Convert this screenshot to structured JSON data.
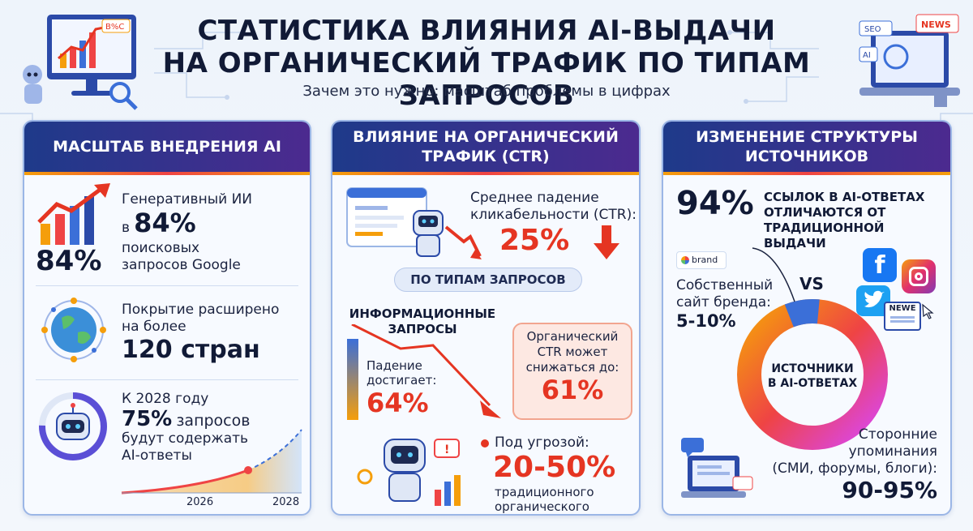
{
  "header": {
    "title_line1": "СТАТИСТИКА ВЛИЯНИЯ AI-ВЫДАЧИ",
    "title_line2": "НА ОРГАНИЧЕСКИЙ ТРАФИК ПО ТИПАМ ЗАПРОСОВ",
    "subtitle": "Зачем это нужно: масштаб проблемы в цифрах",
    "sign_left": "B%C",
    "sign_news": "NEWS",
    "sign_seo": "SEO",
    "sign_ai": "AI"
  },
  "panel1": {
    "heading": "МАСШТАБ ВНЕДРЕНИЯ AI",
    "stat1": {
      "big_left": "84%",
      "line1": "Генеративный ИИ",
      "prefix": "в",
      "value": "84%",
      "line3": "поисковых",
      "line4": "запросов Google"
    },
    "stat2": {
      "line1": "Покрытие расширено",
      "line2": "на более",
      "value": "120 стран"
    },
    "stat3": {
      "line1": "К 2028 году",
      "value": "75%",
      "value_suffix": "запросов",
      "line3": "будут содержать",
      "line4": "AI-ответы",
      "year1": "2026",
      "year2": "2028"
    }
  },
  "panel2": {
    "heading": "ВЛИЯНИЕ НА ОРГАНИЧЕСКИЙ ТРАФИК (CTR)",
    "ctr_label_line1": "Среднее падение",
    "ctr_label_line2": "кликабельности (CTR):",
    "ctr_value": "25%",
    "pill": "ПО ТИПАМ ЗАПРОСОВ",
    "info_title_line1": "ИНФОРМАЦИОННЫЕ",
    "info_title_line2": "ЗАПРОСЫ",
    "drop_line1": "Падение",
    "drop_line2": "достигает:",
    "drop_value": "64%",
    "bubble_line1": "Органический",
    "bubble_line2": "CTR может",
    "bubble_line3": "снижаться до:",
    "bubble_value": "61%",
    "threat_label": "Под угрозой:",
    "threat_value": "20-50%",
    "threat_line1": "традиционного",
    "threat_line2": "органического трафика"
  },
  "panel3": {
    "heading": "ИЗМЕНЕНИЕ СТРУКТУРЫ ИСТОЧНИКОВ",
    "top_value": "94%",
    "top_line1": "ССЫЛОК В AI-ОТВЕТАХ",
    "top_line2": "ОТЛИЧАЮТСЯ ОТ",
    "top_line3": "ТРАДИЦИОННОЙ ВЫДАЧИ",
    "brand_chip": "brand",
    "vs": "VS",
    "own_line1": "Собственный",
    "own_line2": "сайт бренда:",
    "own_value": "5-10%",
    "donut_line1": "ИСТОЧНИКИ",
    "donut_line2": "В AI-ОТВЕТАХ",
    "third_line1": "Сторонние",
    "third_line2": "упоминания",
    "third_line3": "(СМИ, форумы, блоги):",
    "third_value": "90-95%",
    "news_chip": "NEWE",
    "own_share": 0.075
  },
  "colors": {
    "header_from": "#1e3a8a",
    "header_to": "#4c2a8f",
    "accent_red": "#e53522",
    "accent_orange": "#f59e0b",
    "donut_blue": "#3b6fd8"
  }
}
